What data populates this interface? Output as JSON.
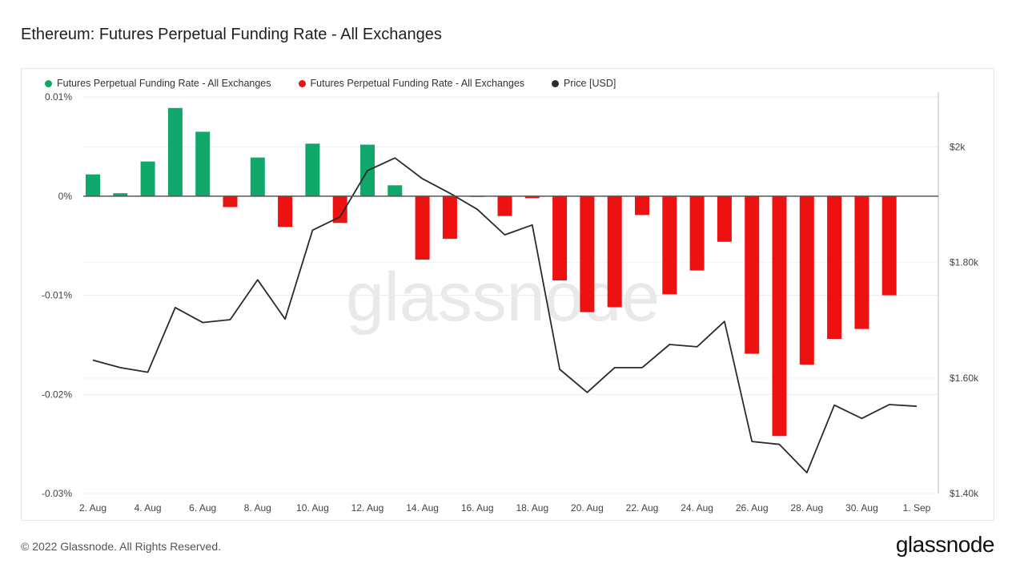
{
  "title": "Ethereum: Futures Perpetual Funding Rate - All Exchanges",
  "footer": "© 2022 Glassnode. All Rights Reserved.",
  "brand": "glassnode",
  "watermark": "glassnode",
  "chart_data": {
    "type": "bar",
    "title": "Ethereum: Futures Perpetual Funding Rate - All Exchanges",
    "legend": [
      {
        "label": "Futures Perpetual Funding Rate - All Exchanges",
        "color": "#0fa86a"
      },
      {
        "label": "Futures Perpetual Funding Rate - All Exchanges",
        "color": "#e81414"
      },
      {
        "label": "Price [USD]",
        "color": "#2b2b2b"
      }
    ],
    "colors": {
      "positive": "#0fa86a",
      "negative": "#ee1111",
      "price": "#2b2b2b"
    },
    "x": [
      "2 Aug",
      "3 Aug",
      "4 Aug",
      "5 Aug",
      "6 Aug",
      "7 Aug",
      "8 Aug",
      "9 Aug",
      "10 Aug",
      "11 Aug",
      "12 Aug",
      "13 Aug",
      "14 Aug",
      "15 Aug",
      "16 Aug",
      "17 Aug",
      "18 Aug",
      "19 Aug",
      "20 Aug",
      "21 Aug",
      "22 Aug",
      "23 Aug",
      "24 Aug",
      "25 Aug",
      "26 Aug",
      "27 Aug",
      "28 Aug",
      "29 Aug",
      "30 Aug",
      "31 Aug",
      "1 Sep"
    ],
    "x_tick_labels": [
      "2. Aug",
      "4. Aug",
      "6. Aug",
      "8. Aug",
      "10. Aug",
      "12. Aug",
      "14. Aug",
      "16. Aug",
      "18. Aug",
      "20. Aug",
      "22. Aug",
      "24. Aug",
      "26. Aug",
      "28. Aug",
      "30. Aug",
      "1. Sep"
    ],
    "series": [
      {
        "name": "Futures Perpetual Funding Rate - All Exchanges",
        "axis": "left",
        "unit": "%",
        "values": [
          0.0022,
          0.0003,
          0.0035,
          0.0089,
          0.0065,
          -0.0011,
          0.0039,
          -0.0031,
          0.0053,
          -0.0027,
          0.0052,
          0.0011,
          -0.0064,
          -0.0043,
          0.0,
          -0.002,
          -0.0002,
          -0.0085,
          -0.0117,
          -0.0112,
          -0.0019,
          -0.0099,
          -0.0075,
          -0.0046,
          -0.0159,
          -0.0242,
          -0.017,
          -0.0144,
          -0.0134,
          -0.01,
          null
        ]
      },
      {
        "name": "Price [USD]",
        "axis": "right",
        "unit": "USD",
        "values": [
          1631,
          1618,
          1610,
          1722,
          1696,
          1701,
          1770,
          1702,
          1856,
          1879,
          1959,
          1981,
          1945,
          1920,
          1892,
          1848,
          1865,
          1615,
          1575,
          1618,
          1618,
          1658,
          1654,
          1698,
          1490,
          1485,
          1436,
          1553,
          1530,
          1554,
          1551
        ]
      }
    ],
    "y_left": {
      "ticks": [
        0.01,
        0,
        -0.01,
        -0.02,
        -0.03
      ],
      "tick_labels": [
        "0.01%",
        "0%",
        "-0.01%",
        "-0.02%",
        "-0.03%"
      ],
      "ylim": [
        -0.03,
        0.0105
      ]
    },
    "y_right": {
      "ticks": [
        2000,
        1800,
        1600,
        1400
      ],
      "tick_labels": [
        "$2k",
        "$1.80k",
        "$1.60k",
        "$1.40k"
      ],
      "ylim": [
        1400,
        2095
      ]
    },
    "legend_position": "top-left",
    "grid": true
  }
}
